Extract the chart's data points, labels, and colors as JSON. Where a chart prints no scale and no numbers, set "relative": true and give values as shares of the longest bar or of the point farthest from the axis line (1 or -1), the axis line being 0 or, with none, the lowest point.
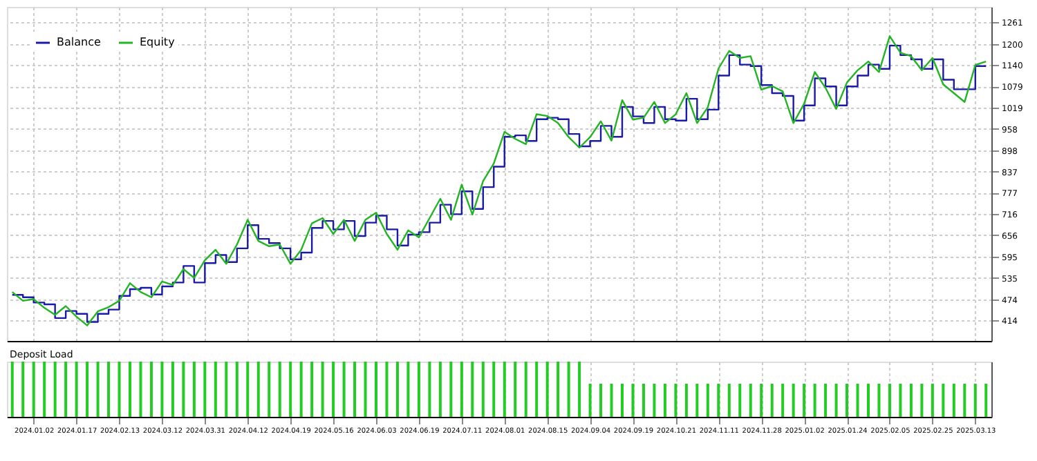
{
  "chart_data": [
    {
      "type": "line",
      "legend": "top left",
      "grid": true,
      "tick_labels": "y",
      "line_style": "solid",
      "categories": [
        null,
        null,
        "2024.01.02",
        null,
        null,
        null,
        "2024.01.17",
        null,
        null,
        null,
        "2024.02.13",
        null,
        null,
        null,
        "2024.03.12",
        null,
        null,
        null,
        "2024.03.31",
        null,
        null,
        null,
        "2024.04.12",
        null,
        null,
        null,
        "2024.04.19",
        null,
        null,
        null,
        "2024.05.16",
        null,
        null,
        null,
        "2024.06.03",
        null,
        null,
        null,
        "2024.06.19",
        null,
        null,
        null,
        "2024.07.11",
        null,
        null,
        null,
        "2024.08.01",
        null,
        null,
        null,
        "2024.08.15",
        null,
        null,
        null,
        "2024.09.04",
        null,
        null,
        null,
        "2024.09.19",
        null,
        null,
        null,
        "2024.10.21",
        null,
        null,
        null,
        "2024.11.11",
        null,
        null,
        null,
        "2024.11.28",
        null,
        null,
        null,
        "2025.01.02",
        null,
        null,
        null,
        "2025.01.24",
        null,
        null,
        null,
        "2025.02.05",
        null,
        null,
        null,
        "2025.02.25",
        null,
        null,
        null,
        "2025.03.13",
        null
      ],
      "ylim": [
        356,
        1305
      ],
      "yticks": [
        414,
        474,
        535,
        595,
        656,
        716,
        777,
        837,
        898,
        958,
        1019,
        1079,
        1140,
        1200,
        1261
      ],
      "series": [
        {
          "name": "Balance",
          "type": "step",
          "color": "#1a1aa8",
          "values": [
            487,
            480,
            465,
            460,
            421,
            441,
            433,
            410,
            433,
            445,
            484,
            503,
            507,
            488,
            511,
            522,
            569,
            522,
            577,
            600,
            580,
            619,
            685,
            646,
            634,
            619,
            588,
            607,
            677,
            697,
            673,
            697,
            654,
            692,
            712,
            673,
            627,
            658,
            665,
            692,
            743,
            716,
            781,
            731,
            793,
            851,
            936,
            940,
            924,
            986,
            990,
            986,
            944,
            909,
            924,
            967,
            936,
            1021,
            994,
            975,
            1021,
            986,
            982,
            1044,
            986,
            1013,
            1110,
            1168,
            1141,
            1137,
            1083,
            1060,
            1052,
            982,
            1025,
            1102,
            1079,
            1025,
            1079,
            1110,
            1141,
            1129,
            1195,
            1168,
            1156,
            1129,
            1156,
            1098,
            1071,
            1071,
            1137,
            1137
          ]
        },
        {
          "name": "Equity",
          "type": "line",
          "color": "#22b422",
          "values": [
            495,
            470,
            475,
            450,
            430,
            455,
            425,
            400,
            440,
            452,
            470,
            520,
            495,
            480,
            525,
            515,
            560,
            535,
            585,
            615,
            575,
            630,
            700,
            640,
            625,
            630,
            575,
            615,
            690,
            705,
            660,
            700,
            640,
            700,
            720,
            660,
            615,
            670,
            650,
            705,
            760,
            700,
            800,
            715,
            810,
            860,
            950,
            930,
            915,
            1000,
            995,
            975,
            935,
            905,
            935,
            980,
            925,
            1040,
            985,
            990,
            1035,
            975,
            1000,
            1060,
            975,
            1020,
            1130,
            1180,
            1160,
            1165,
            1070,
            1080,
            1065,
            975,
            1030,
            1120,
            1075,
            1015,
            1090,
            1125,
            1150,
            1120,
            1222,
            1175,
            1165,
            1125,
            1160,
            1085,
            1060,
            1035,
            1140,
            1150
          ]
        }
      ]
    },
    {
      "type": "bar",
      "title": "Deposit Load",
      "relative": true,
      "tick_labels": "x",
      "grid": "x",
      "color": "#22cc22",
      "categories": [
        null,
        null,
        "2024.01.02",
        null,
        null,
        null,
        "2024.01.17",
        null,
        null,
        null,
        "2024.02.13",
        null,
        null,
        null,
        "2024.03.12",
        null,
        null,
        null,
        "2024.03.31",
        null,
        null,
        null,
        "2024.04.12",
        null,
        null,
        null,
        "2024.04.19",
        null,
        null,
        null,
        "2024.05.16",
        null,
        null,
        null,
        "2024.06.03",
        null,
        null,
        null,
        "2024.06.19",
        null,
        null,
        null,
        "2024.07.11",
        null,
        null,
        null,
        "2024.08.01",
        null,
        null,
        null,
        "2024.08.15",
        null,
        null,
        null,
        "2024.09.04",
        null,
        null,
        null,
        "2024.09.19",
        null,
        null,
        null,
        "2024.10.21",
        null,
        null,
        null,
        "2024.11.11",
        null,
        null,
        null,
        "2024.11.28",
        null,
        null,
        null,
        "2025.01.02",
        null,
        null,
        null,
        "2025.01.24",
        null,
        null,
        null,
        "2025.02.05",
        null,
        null,
        null,
        "2025.02.25",
        null,
        null,
        null,
        "2025.03.13",
        null
      ],
      "values": [
        1,
        1,
        1,
        1,
        1,
        1,
        1,
        1,
        1,
        1,
        1,
        1,
        1,
        1,
        1,
        1,
        1,
        1,
        1,
        1,
        1,
        1,
        1,
        1,
        1,
        1,
        1,
        1,
        1,
        1,
        1,
        1,
        1,
        1,
        1,
        1,
        1,
        1,
        1,
        1,
        1,
        1,
        1,
        1,
        1,
        1,
        1,
        1,
        1,
        1,
        1,
        1,
        1,
        1,
        0.6,
        0.6,
        0.6,
        0.6,
        0.6,
        0.6,
        0.6,
        0.6,
        0.6,
        0.6,
        0.6,
        0.6,
        0.6,
        0.6,
        0.6,
        0.6,
        0.6,
        0.6,
        0.6,
        0.6,
        0.6,
        0.6,
        0.6,
        0.6,
        0.6,
        0.6,
        0.6,
        0.6,
        0.6,
        0.6,
        0.6,
        0.6,
        0.6,
        0.6,
        0.6,
        0.6,
        0.6,
        0.6
      ]
    }
  ]
}
